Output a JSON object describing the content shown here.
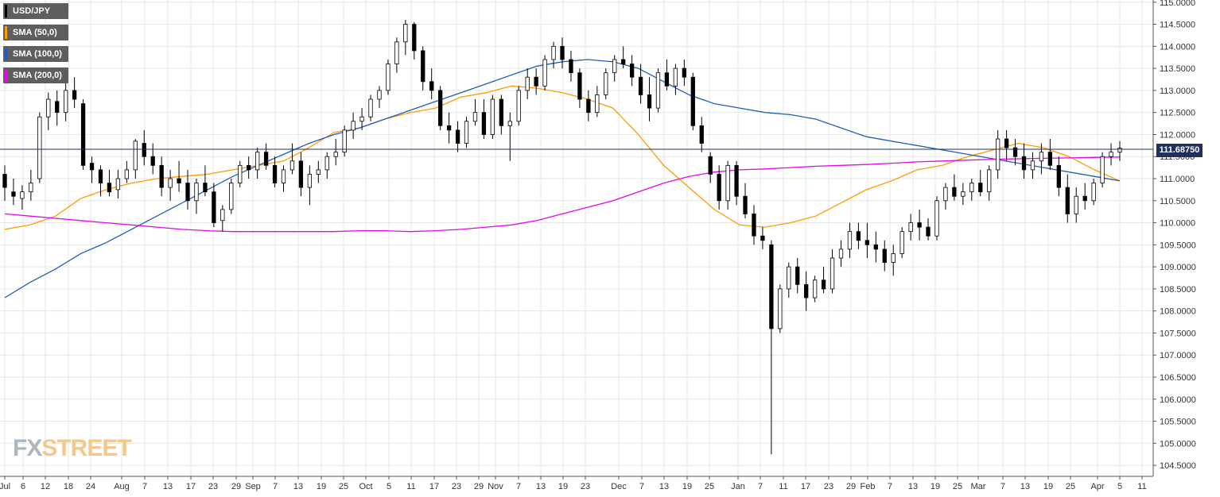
{
  "legend": [
    {
      "label": "USD/JPY",
      "color": "#000000"
    },
    {
      "label": "SMA (50,0)",
      "color": "#ff9a00"
    },
    {
      "label": "SMA (100,0)",
      "color": "#1f5fb5"
    },
    {
      "label": "SMA (200,0)",
      "color": "#e10ae6"
    }
  ],
  "watermark": {
    "part1": "FX",
    "part2": "STREET"
  },
  "price_label": "111.68750",
  "chart_data": {
    "type": "candlestick",
    "symbol": "USD/JPY",
    "ylim": [
      104.25,
      115.05
    ],
    "y_ticks": [
      "115.0000",
      "114.5000",
      "114.0000",
      "113.5000",
      "113.0000",
      "112.5000",
      "112.0000",
      "111.5000",
      "111.0000",
      "110.5000",
      "110.0000",
      "109.5000",
      "109.0000",
      "108.5000",
      "108.0000",
      "107.5000",
      "107.0000",
      "106.5000",
      "106.0000",
      "105.5000",
      "105.0000",
      "104.5000"
    ],
    "x_ticks": [
      "Jul",
      "6",
      "12",
      "18",
      "24",
      "Aug",
      "7",
      "13",
      "17",
      "23",
      "29",
      "Sep",
      "7",
      "13",
      "19",
      "25",
      "Oct",
      "5",
      "11",
      "17",
      "23",
      "29",
      "Nov",
      "7",
      "13",
      "19",
      "23",
      "Dec",
      "7",
      "13",
      "19",
      "25",
      "Jan",
      "7",
      "11",
      "17",
      "23",
      "29",
      "Feb",
      "7",
      "13",
      "19",
      "25",
      "Mar",
      "7",
      "13",
      "19",
      "25",
      "Apr",
      "5",
      "11"
    ],
    "current_price": 111.6875,
    "grid": true,
    "legend_position": "top-left",
    "series": [
      {
        "name": "SMA (50,0)",
        "color": "#ff9a00",
        "x": [
          0,
          10,
          20,
          30,
          40,
          50,
          60,
          70,
          80,
          90,
          100,
          110,
          120,
          130,
          140,
          150,
          160,
          170,
          180,
          190,
          200,
          210,
          220,
          230,
          240,
          250,
          260,
          270,
          280,
          290,
          300,
          310,
          320,
          330,
          340,
          350,
          360,
          370,
          380,
          390,
          400,
          410,
          420,
          430,
          440
        ],
        "values": [
          109.85,
          109.95,
          110.15,
          110.55,
          110.75,
          110.9,
          111.0,
          111.05,
          111.1,
          111.2,
          111.3,
          111.4,
          111.7,
          112.05,
          112.15,
          112.35,
          112.5,
          112.6,
          112.85,
          112.95,
          113.1,
          113.05,
          112.95,
          112.8,
          112.6,
          112.0,
          111.3,
          110.8,
          110.3,
          109.95,
          109.9,
          110.0,
          110.15,
          110.45,
          110.75,
          110.95,
          111.2,
          111.3,
          111.5,
          111.65,
          111.8,
          111.7,
          111.5,
          111.2,
          110.95
        ]
      },
      {
        "name": "SMA (100,0)",
        "color": "#1f5fb5",
        "x": [
          0,
          10,
          20,
          30,
          40,
          50,
          60,
          70,
          80,
          90,
          100,
          110,
          120,
          130,
          140,
          150,
          160,
          170,
          180,
          190,
          200,
          210,
          220,
          230,
          240,
          250,
          260,
          270,
          280,
          290,
          300,
          310,
          320,
          330,
          340,
          350,
          360,
          370,
          380,
          390,
          400,
          410,
          420,
          430,
          440
        ],
        "values": [
          108.3,
          108.65,
          108.95,
          109.3,
          109.55,
          109.85,
          110.15,
          110.45,
          110.75,
          111.05,
          111.3,
          111.55,
          111.8,
          112.0,
          112.15,
          112.35,
          112.55,
          112.75,
          112.95,
          113.15,
          113.35,
          113.55,
          113.65,
          113.7,
          113.65,
          113.5,
          113.2,
          112.9,
          112.7,
          112.6,
          112.5,
          112.45,
          112.35,
          112.15,
          111.95,
          111.85,
          111.75,
          111.65,
          111.55,
          111.45,
          111.35,
          111.25,
          111.15,
          111.05,
          110.95
        ]
      },
      {
        "name": "SMA (200,0)",
        "color": "#e10ae6",
        "x": [
          0,
          10,
          20,
          30,
          40,
          50,
          60,
          70,
          80,
          90,
          100,
          110,
          120,
          130,
          140,
          150,
          160,
          170,
          180,
          190,
          200,
          210,
          220,
          230,
          240,
          250,
          260,
          270,
          280,
          290,
          300,
          310,
          320,
          330,
          340,
          350,
          360,
          370,
          380,
          390,
          400,
          410,
          420,
          430,
          440
        ],
        "values": [
          110.2,
          110.15,
          110.1,
          110.05,
          110.0,
          109.95,
          109.9,
          109.85,
          109.82,
          109.8,
          109.8,
          109.8,
          109.8,
          109.8,
          109.82,
          109.82,
          109.8,
          109.82,
          109.85,
          109.9,
          109.95,
          110.05,
          110.2,
          110.35,
          110.5,
          110.7,
          110.9,
          111.05,
          111.15,
          111.2,
          111.22,
          111.25,
          111.28,
          111.3,
          111.32,
          111.35,
          111.38,
          111.4,
          111.42,
          111.44,
          111.45,
          111.46,
          111.47,
          111.48,
          111.49
        ]
      }
    ],
    "ohlc": {
      "fields": [
        "x",
        "open",
        "high",
        "low",
        "close"
      ],
      "rows": [
        [
          0,
          111.1,
          111.3,
          110.5,
          110.8
        ],
        [
          2,
          110.7,
          111.0,
          110.4,
          110.6
        ],
        [
          4,
          110.55,
          110.85,
          110.3,
          110.7
        ],
        [
          6,
          110.7,
          111.2,
          110.5,
          110.9
        ],
        [
          8,
          111.0,
          112.5,
          110.9,
          112.4
        ],
        [
          10,
          112.4,
          112.95,
          112.1,
          112.8
        ],
        [
          12,
          112.75,
          113.0,
          112.2,
          112.5
        ],
        [
          14,
          112.5,
          113.2,
          112.3,
          113.0
        ],
        [
          16,
          113.0,
          113.3,
          112.6,
          112.8
        ],
        [
          18,
          112.7,
          112.8,
          111.2,
          111.3
        ],
        [
          20,
          111.35,
          111.5,
          110.9,
          111.2
        ],
        [
          22,
          111.2,
          111.3,
          110.6,
          110.9
        ],
        [
          24,
          110.9,
          111.2,
          110.6,
          110.7
        ],
        [
          26,
          110.75,
          111.2,
          110.55,
          111.0
        ],
        [
          28,
          111.0,
          111.4,
          110.9,
          111.2
        ],
        [
          30,
          111.2,
          111.9,
          111.0,
          111.85
        ],
        [
          32,
          111.8,
          112.1,
          111.3,
          111.5
        ],
        [
          34,
          111.5,
          111.8,
          111.1,
          111.3
        ],
        [
          36,
          111.3,
          111.5,
          110.6,
          110.8
        ],
        [
          38,
          110.8,
          111.2,
          110.5,
          111.0
        ],
        [
          40,
          111.0,
          111.4,
          110.7,
          110.9
        ],
        [
          42,
          110.9,
          111.2,
          110.3,
          110.5
        ],
        [
          44,
          110.5,
          111.0,
          110.2,
          110.9
        ],
        [
          46,
          110.9,
          111.3,
          110.6,
          110.7
        ],
        [
          48,
          110.7,
          110.9,
          109.9,
          110.0
        ],
        [
          50,
          110.05,
          110.4,
          109.8,
          110.3
        ],
        [
          52,
          110.3,
          111.0,
          110.2,
          110.9
        ],
        [
          54,
          110.9,
          111.4,
          110.8,
          111.3
        ],
        [
          56,
          111.3,
          111.5,
          111.0,
          111.2
        ],
        [
          58,
          111.2,
          111.7,
          111.0,
          111.6
        ],
        [
          60,
          111.6,
          111.8,
          111.2,
          111.3
        ],
        [
          62,
          111.3,
          111.5,
          110.8,
          110.9
        ],
        [
          64,
          110.9,
          111.3,
          110.7,
          111.2
        ],
        [
          66,
          111.2,
          111.8,
          111.1,
          111.4
        ],
        [
          68,
          111.4,
          111.6,
          110.6,
          110.8
        ],
        [
          70,
          110.8,
          111.3,
          110.4,
          111.1
        ],
        [
          72,
          111.1,
          111.4,
          110.9,
          111.2
        ],
        [
          74,
          111.2,
          111.6,
          111.0,
          111.5
        ],
        [
          76,
          111.5,
          111.9,
          111.3,
          111.6
        ],
        [
          78,
          111.6,
          112.2,
          111.5,
          112.1
        ],
        [
          80,
          112.1,
          112.5,
          111.9,
          112.3
        ],
        [
          82,
          112.3,
          112.6,
          112.1,
          112.4
        ],
        [
          84,
          112.4,
          112.9,
          112.3,
          112.8
        ],
        [
          86,
          112.8,
          113.1,
          112.6,
          113.0
        ],
        [
          88,
          113.0,
          113.7,
          112.9,
          113.6
        ],
        [
          90,
          113.6,
          114.2,
          113.4,
          114.1
        ],
        [
          92,
          114.1,
          114.6,
          113.8,
          114.5
        ],
        [
          94,
          114.5,
          114.55,
          113.7,
          113.9
        ],
        [
          96,
          113.9,
          114.0,
          113.0,
          113.2
        ],
        [
          98,
          113.2,
          113.5,
          112.8,
          113.0
        ],
        [
          100,
          113.0,
          113.1,
          112.1,
          112.2
        ],
        [
          102,
          112.2,
          112.5,
          111.8,
          112.1
        ],
        [
          104,
          112.1,
          112.3,
          111.6,
          111.8
        ],
        [
          106,
          111.8,
          112.4,
          111.7,
          112.3
        ],
        [
          108,
          112.3,
          112.8,
          112.2,
          112.5
        ],
        [
          110,
          112.5,
          112.8,
          111.9,
          112.0
        ],
        [
          112,
          112.0,
          112.9,
          111.9,
          112.8
        ],
        [
          114,
          112.8,
          112.9,
          112.0,
          112.2
        ],
        [
          116,
          112.2,
          112.5,
          111.4,
          112.3
        ],
        [
          118,
          112.3,
          113.1,
          112.2,
          113.0
        ],
        [
          120,
          113.0,
          113.5,
          112.8,
          113.3
        ],
        [
          122,
          113.3,
          113.5,
          112.9,
          113.1
        ],
        [
          124,
          113.1,
          113.8,
          113.0,
          113.7
        ],
        [
          126,
          113.7,
          114.1,
          113.5,
          114.0
        ],
        [
          128,
          114.0,
          114.2,
          113.5,
          113.7
        ],
        [
          130,
          113.7,
          113.9,
          113.2,
          113.4
        ],
        [
          132,
          113.4,
          113.5,
          112.6,
          112.8
        ],
        [
          134,
          112.8,
          113.0,
          112.3,
          112.5
        ],
        [
          136,
          112.5,
          113.1,
          112.4,
          112.9
        ],
        [
          138,
          112.9,
          113.5,
          112.8,
          113.4
        ],
        [
          140,
          113.4,
          113.8,
          113.2,
          113.7
        ],
        [
          142,
          113.7,
          114.0,
          113.5,
          113.6
        ],
        [
          144,
          113.6,
          113.8,
          113.1,
          113.3
        ],
        [
          146,
          113.3,
          113.6,
          112.7,
          112.9
        ],
        [
          148,
          112.9,
          113.3,
          112.3,
          112.6
        ],
        [
          150,
          112.6,
          113.5,
          112.5,
          113.4
        ],
        [
          152,
          113.4,
          113.7,
          113.0,
          113.1
        ],
        [
          154,
          113.1,
          113.6,
          112.9,
          113.5
        ],
        [
          156,
          113.5,
          113.7,
          113.1,
          113.3
        ],
        [
          158,
          113.3,
          113.4,
          112.1,
          112.2
        ],
        [
          160,
          112.2,
          112.4,
          111.6,
          111.8
        ],
        [
          162,
          111.5,
          111.6,
          110.9,
          111.1
        ],
        [
          164,
          111.1,
          111.3,
          110.3,
          110.5
        ],
        [
          166,
          110.5,
          111.4,
          110.3,
          111.3
        ],
        [
          168,
          111.3,
          111.4,
          110.4,
          110.6
        ],
        [
          170,
          110.6,
          110.9,
          110.1,
          110.2
        ],
        [
          172,
          110.2,
          110.4,
          109.5,
          109.7
        ],
        [
          174,
          109.7,
          109.9,
          109.4,
          109.6
        ],
        [
          176,
          109.5,
          109.6,
          104.75,
          107.6
        ],
        [
          178,
          107.6,
          108.6,
          107.5,
          108.5
        ],
        [
          180,
          108.5,
          109.1,
          108.3,
          109.0
        ],
        [
          182,
          109.0,
          109.2,
          108.4,
          108.6
        ],
        [
          184,
          108.6,
          108.9,
          108.0,
          108.3
        ],
        [
          186,
          108.3,
          108.8,
          108.2,
          108.7
        ],
        [
          188,
          108.7,
          109.0,
          108.4,
          108.5
        ],
        [
          190,
          108.5,
          109.4,
          108.4,
          109.2
        ],
        [
          192,
          109.2,
          109.6,
          109.0,
          109.4
        ],
        [
          194,
          109.4,
          110.0,
          109.2,
          109.8
        ],
        [
          196,
          109.8,
          110.0,
          109.4,
          109.6
        ],
        [
          198,
          109.6,
          110.0,
          109.2,
          109.5
        ],
        [
          200,
          109.5,
          109.8,
          109.1,
          109.4
        ],
        [
          202,
          109.4,
          109.6,
          108.9,
          109.1
        ],
        [
          204,
          109.1,
          109.5,
          108.8,
          109.3
        ],
        [
          206,
          109.3,
          109.9,
          109.2,
          109.8
        ],
        [
          208,
          109.8,
          110.2,
          109.6,
          110.0
        ],
        [
          210,
          110.0,
          110.3,
          109.6,
          109.9
        ],
        [
          212,
          109.9,
          110.1,
          109.6,
          109.7
        ],
        [
          214,
          109.7,
          110.6,
          109.6,
          110.5
        ],
        [
          216,
          110.5,
          110.9,
          110.3,
          110.8
        ],
        [
          218,
          110.8,
          111.1,
          110.5,
          110.6
        ],
        [
          220,
          110.6,
          110.9,
          110.4,
          110.7
        ],
        [
          222,
          110.7,
          111.0,
          110.5,
          110.9
        ],
        [
          224,
          110.9,
          111.2,
          110.6,
          110.7
        ],
        [
          226,
          110.7,
          111.3,
          110.5,
          111.2
        ],
        [
          228,
          111.2,
          112.1,
          111.0,
          111.9
        ],
        [
          230,
          111.9,
          112.1,
          111.4,
          111.7
        ],
        [
          232,
          111.7,
          111.9,
          111.3,
          111.5
        ],
        [
          234,
          111.5,
          111.8,
          111.0,
          111.2
        ],
        [
          236,
          111.2,
          111.6,
          111.0,
          111.4
        ],
        [
          238,
          111.4,
          111.8,
          111.1,
          111.6
        ],
        [
          240,
          111.6,
          111.9,
          111.2,
          111.3
        ],
        [
          242,
          111.3,
          111.5,
          110.6,
          110.8
        ],
        [
          244,
          110.8,
          111.1,
          110.0,
          110.2
        ],
        [
          246,
          110.2,
          110.8,
          110.0,
          110.6
        ],
        [
          248,
          110.6,
          110.9,
          110.3,
          110.5
        ],
        [
          250,
          110.5,
          111.0,
          110.4,
          110.9
        ],
        [
          252,
          110.9,
          111.6,
          110.8,
          111.5
        ],
        [
          254,
          111.5,
          111.8,
          111.3,
          111.6
        ],
        [
          256,
          111.6,
          111.85,
          111.4,
          111.69
        ]
      ]
    }
  }
}
